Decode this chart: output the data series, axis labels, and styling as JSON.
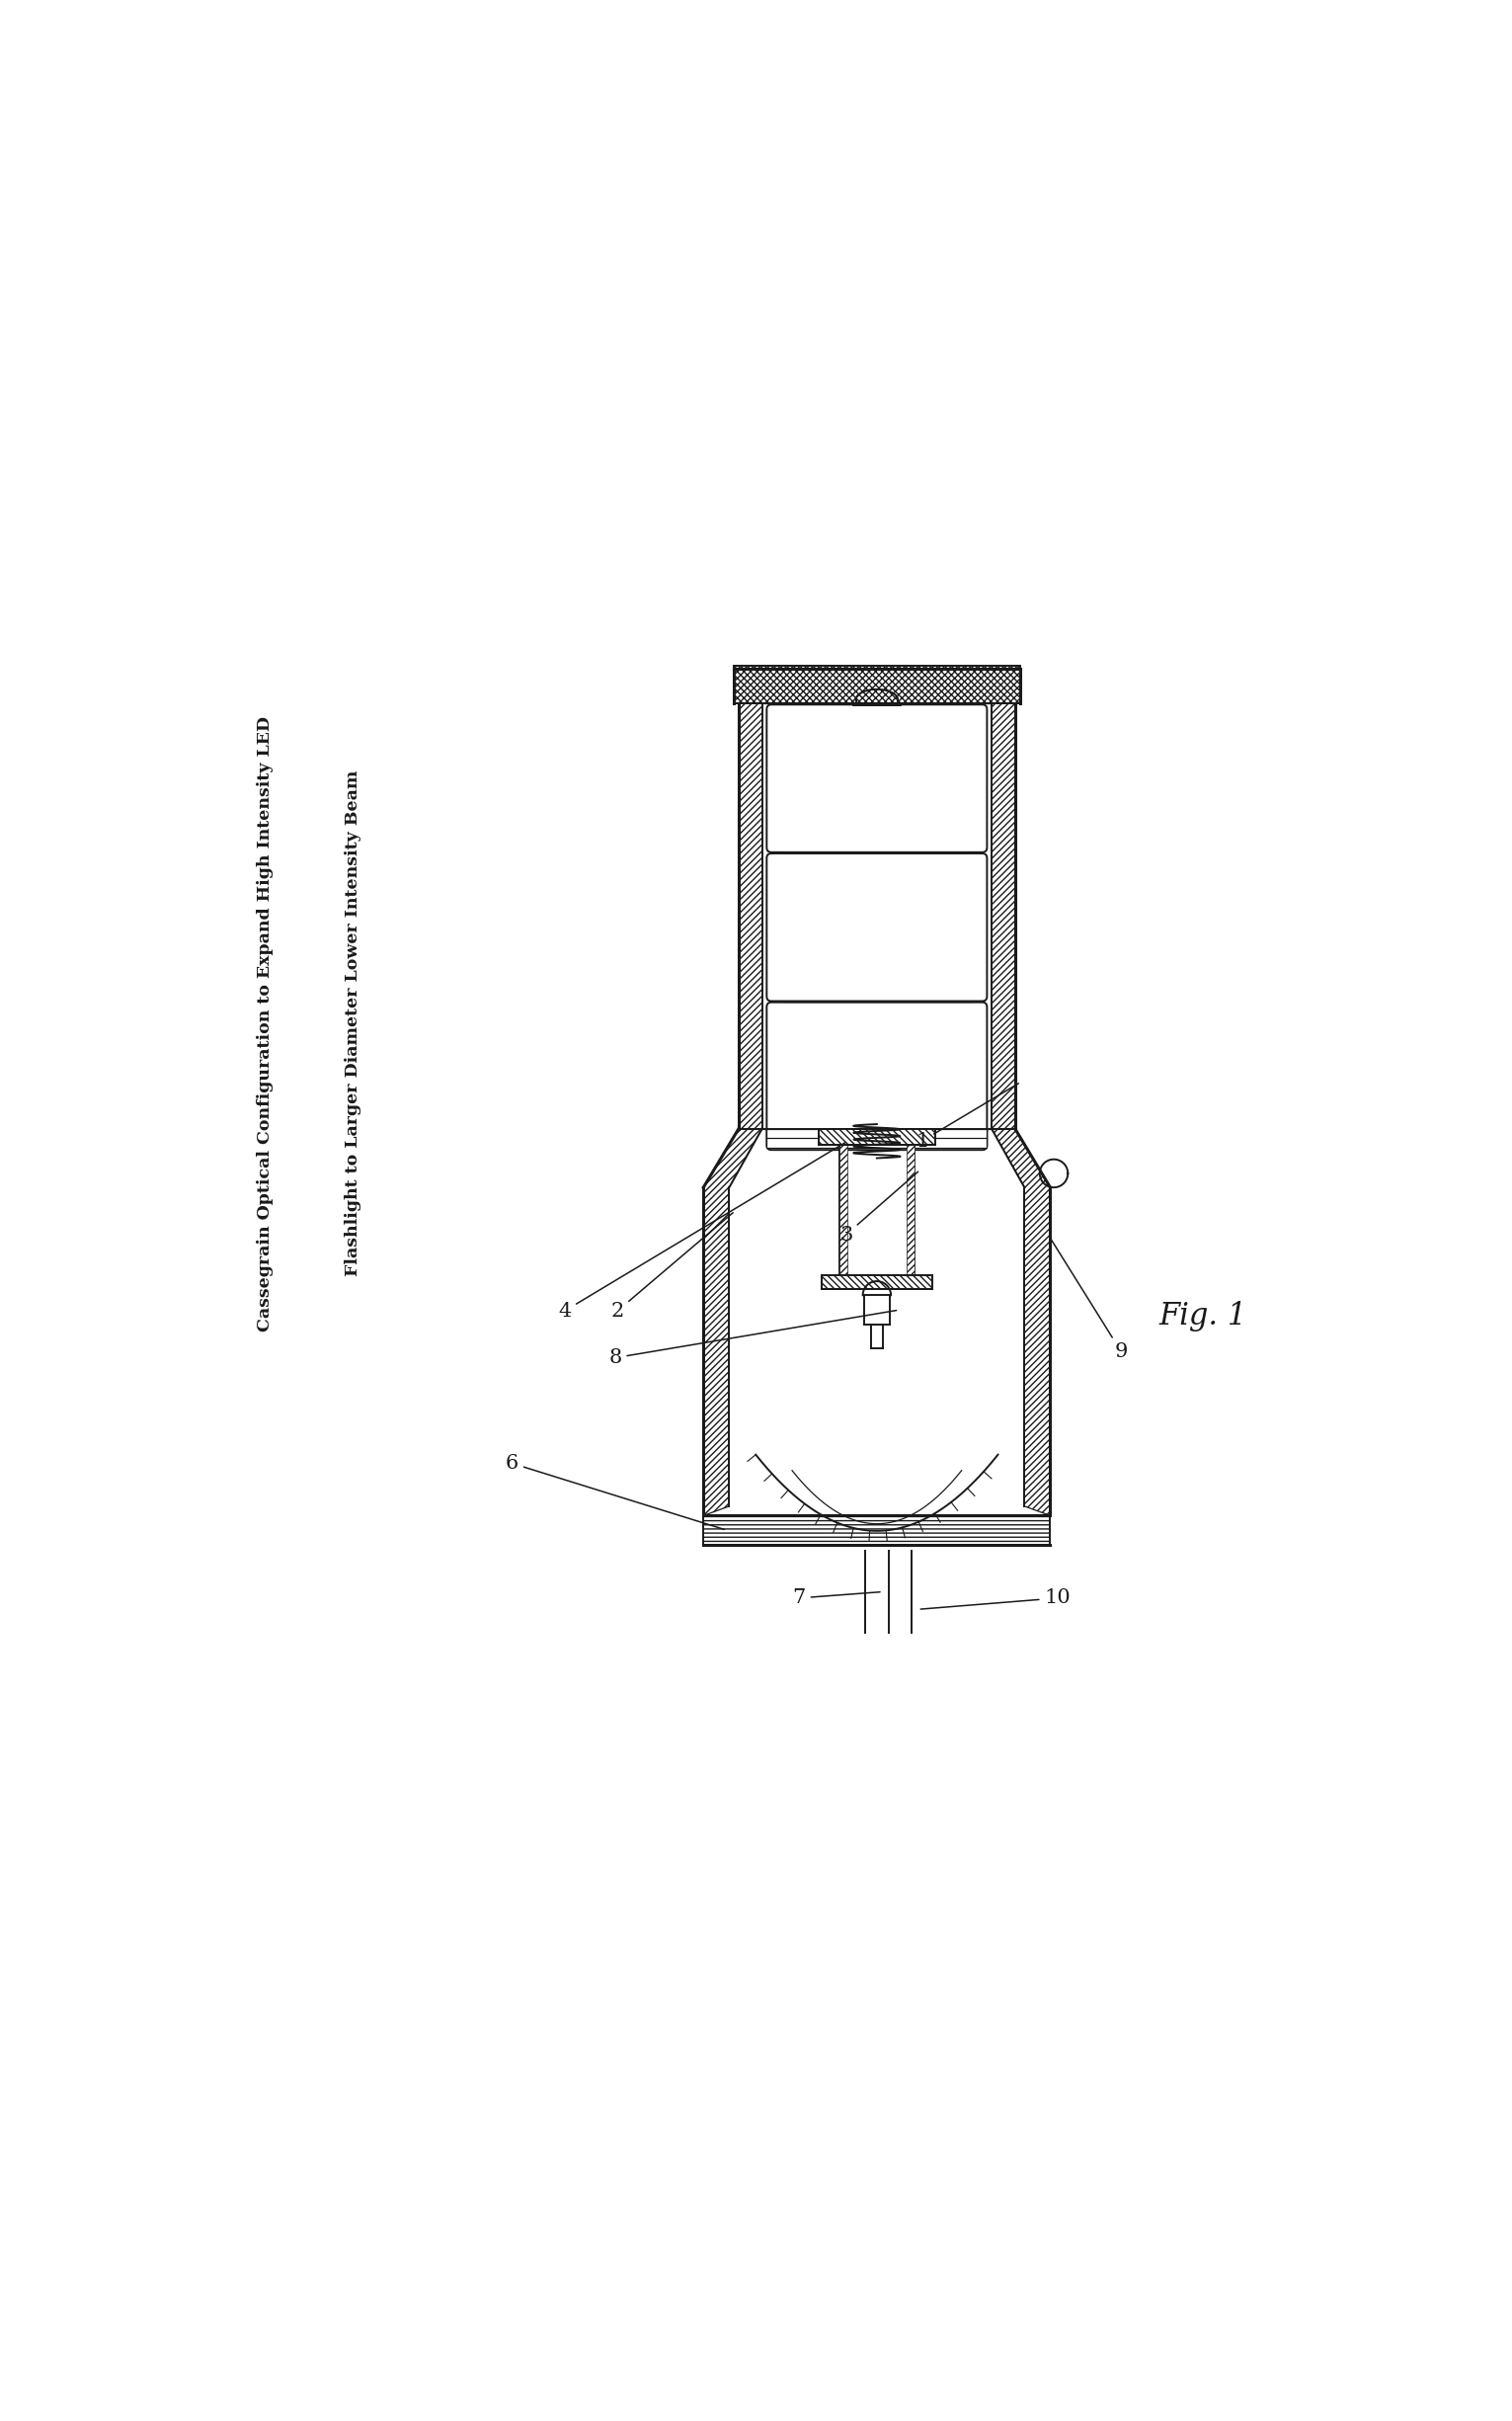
{
  "title_line1": "Cassegrain Optical Configuration to Expand High Intensity LED",
  "title_line2": "Flashlight to Larger Diameter Lower Intensity Beam",
  "fig_label": "Fig. 1",
  "bg_color": "#ffffff",
  "line_color": "#1a1a1a"
}
